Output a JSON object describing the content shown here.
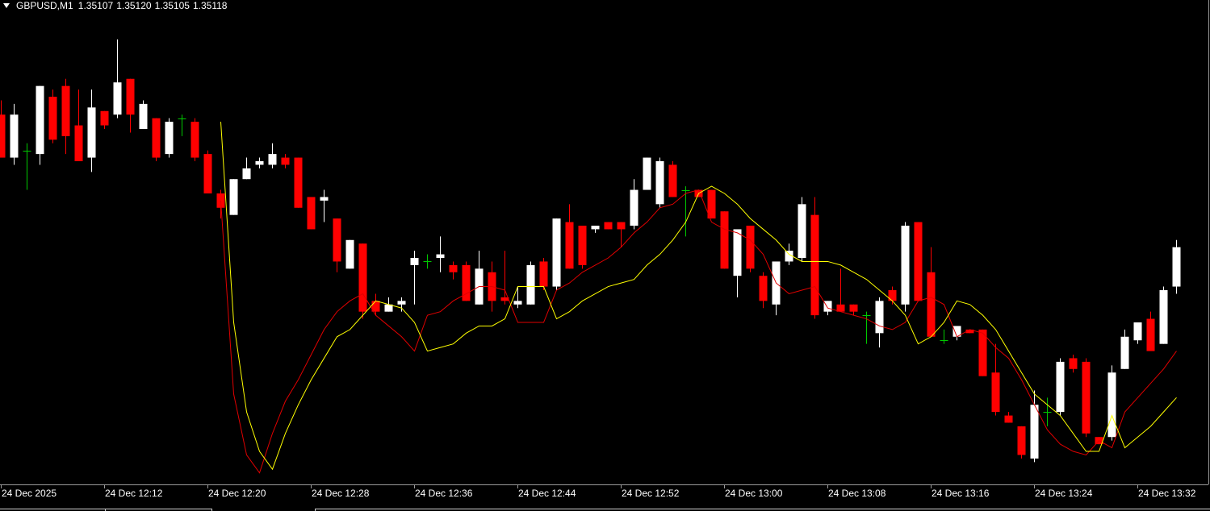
{
  "chart_data": {
    "type": "candlestick",
    "title": "GBPUSD,M1",
    "quote_labels": [
      "1.35107",
      "1.35120",
      "1.35105",
      "1.35118"
    ],
    "categories": [
      "24 Dec 2025",
      null,
      null,
      null,
      null,
      null,
      null,
      null,
      "24 Dec 12:12",
      null,
      null,
      null,
      null,
      null,
      null,
      null,
      "24 Dec 12:20",
      null,
      null,
      null,
      null,
      null,
      null,
      null,
      "24 Dec 12:28",
      null,
      null,
      null,
      null,
      null,
      null,
      null,
      "24 Dec 12:36",
      null,
      null,
      null,
      null,
      null,
      null,
      null,
      "24 Dec 12:44",
      null,
      null,
      null,
      null,
      null,
      null,
      null,
      "24 Dec 12:52",
      null,
      null,
      null,
      null,
      null,
      null,
      null,
      "24 Dec 13:00",
      null,
      null,
      null,
      null,
      null,
      null,
      null,
      "24 Dec 13:08",
      null,
      null,
      null,
      null,
      null,
      null,
      null,
      "24 Dec 13:16",
      null,
      null,
      null,
      null,
      null,
      null,
      null,
      "24 Dec 13:24",
      null,
      null,
      null,
      null,
      null,
      null,
      null,
      "24 Dec 13:32",
      null,
      null,
      null
    ],
    "open": [
      1.35155,
      1.35143,
      1.35145,
      1.35144,
      1.3516,
      1.35163,
      1.35152,
      1.35143,
      1.35156,
      1.35155,
      1.35165,
      1.35151,
      1.35154,
      1.35144,
      1.35154,
      1.35153,
      1.35144,
      1.35133,
      1.35127,
      1.35137,
      1.35141,
      1.35141,
      1.35143,
      1.35143,
      1.35132,
      1.35131,
      1.35126,
      1.35112,
      1.35119,
      1.35103,
      1.351,
      1.35102,
      1.35113,
      1.35114,
      1.35115,
      1.35113,
      1.35113,
      1.35102,
      1.35111,
      1.35104,
      1.35102,
      1.35102,
      1.35114,
      1.35107,
      1.35125,
      1.35124,
      1.35123,
      1.35125,
      1.35125,
      1.35124,
      1.35134,
      1.3513,
      1.35141,
      1.35134,
      1.35134,
      1.35134,
      1.35128,
      1.3511,
      1.35124,
      1.3511,
      1.35102,
      1.35114,
      1.35115,
      1.35127,
      1.351,
      1.35102,
      1.35102,
      1.35099,
      1.35094,
      1.35106,
      1.35102,
      1.35125,
      1.35111,
      1.35092,
      1.35093,
      1.35095,
      1.35095,
      1.35083,
      1.35071,
      1.35068,
      1.35059,
      1.35072,
      1.35072,
      1.35087,
      1.35086,
      1.35065,
      1.35065,
      1.35084,
      1.35092,
      1.35098,
      1.35091,
      1.35107
    ],
    "high": [
      1.35159,
      1.35158,
      1.35147,
      1.35163,
      1.35162,
      1.35165,
      1.35162,
      1.35162,
      1.35156,
      1.35176,
      1.35165,
      1.35159,
      1.35154,
      1.35154,
      1.35155,
      1.35154,
      1.35145,
      1.35134,
      1.35137,
      1.35143,
      1.35143,
      1.35147,
      1.35144,
      1.35143,
      1.35132,
      1.35134,
      1.35126,
      1.3512,
      1.35119,
      1.35105,
      1.35104,
      1.35104,
      1.35117,
      1.35116,
      1.35121,
      1.35114,
      1.35114,
      1.35117,
      1.35114,
      1.35117,
      1.35107,
      1.35114,
      1.35115,
      1.35126,
      1.3513,
      1.35124,
      1.35124,
      1.35125,
      1.35125,
      1.35137,
      1.35143,
      1.35143,
      1.35142,
      1.35135,
      1.35134,
      1.35134,
      1.35128,
      1.35123,
      1.35124,
      1.35111,
      1.35114,
      1.35119,
      1.35132,
      1.35132,
      1.35103,
      1.35112,
      1.35102,
      1.351,
      1.35104,
      1.35107,
      1.35125,
      1.35125,
      1.35118,
      1.35095,
      1.35096,
      1.35095,
      1.35095,
      1.35091,
      1.35072,
      1.35068,
      1.35078,
      1.35076,
      1.35087,
      1.35088,
      1.35087,
      1.35065,
      1.35085,
      1.35095,
      1.35097,
      1.351,
      1.35107,
      1.3512
    ],
    "low": [
      1.35143,
      1.35141,
      1.35134,
      1.35141,
      1.35147,
      1.35144,
      1.35142,
      1.35139,
      1.35151,
      1.35154,
      1.3515,
      1.35151,
      1.35142,
      1.35143,
      1.35149,
      1.35142,
      1.35133,
      1.35126,
      1.35127,
      1.35137,
      1.3514,
      1.3514,
      1.3514,
      1.35129,
      1.35123,
      1.35125,
      1.35111,
      1.35112,
      1.35098,
      1.35099,
      1.351,
      1.351,
      1.35102,
      1.35112,
      1.35111,
      1.35109,
      1.35103,
      1.35102,
      1.351,
      1.35102,
      1.35101,
      1.35102,
      1.35106,
      1.35106,
      1.35112,
      1.35112,
      1.35122,
      1.35123,
      1.35118,
      1.35123,
      1.35134,
      1.35129,
      1.35132,
      1.35121,
      1.35132,
      1.35126,
      1.35112,
      1.35104,
      1.35111,
      1.35101,
      1.35099,
      1.35113,
      1.35114,
      1.35098,
      1.35099,
      1.351,
      1.35099,
      1.35091,
      1.3509,
      1.35102,
      1.351,
      1.35103,
      1.35093,
      1.35091,
      1.35092,
      1.35094,
      1.35082,
      1.35071,
      1.35069,
      1.35059,
      1.35058,
      1.35068,
      1.35071,
      1.35083,
      1.35065,
      1.35063,
      1.35064,
      1.35084,
      1.35091,
      1.35089,
      1.35091,
      1.35105
    ],
    "close": [
      1.35143,
      1.35155,
      1.35145,
      1.35163,
      1.35148,
      1.35149,
      1.35142,
      1.35157,
      1.35152,
      1.35164,
      1.35155,
      1.35158,
      1.35143,
      1.35153,
      1.35154,
      1.35143,
      1.35133,
      1.35129,
      1.35137,
      1.3514,
      1.35142,
      1.35144,
      1.35141,
      1.35129,
      1.35123,
      1.35132,
      1.35114,
      1.3512,
      1.351,
      1.351,
      1.35102,
      1.35103,
      1.35115,
      1.35114,
      1.35116,
      1.35111,
      1.35103,
      1.35112,
      1.35103,
      1.35103,
      1.35103,
      1.35113,
      1.35107,
      1.35126,
      1.35112,
      1.35113,
      1.35124,
      1.35123,
      1.35123,
      1.35134,
      1.35143,
      1.35142,
      1.35132,
      1.35134,
      1.35132,
      1.35126,
      1.35112,
      1.35123,
      1.35112,
      1.35103,
      1.35114,
      1.35117,
      1.3513,
      1.35099,
      1.35103,
      1.351,
      1.351,
      1.35099,
      1.35103,
      1.35103,
      1.35124,
      1.35103,
      1.35093,
      1.35092,
      1.35096,
      1.35094,
      1.35082,
      1.35072,
      1.35069,
      1.3506,
      1.35074,
      1.35072,
      1.35086,
      1.35084,
      1.35066,
      1.35063,
      1.35083,
      1.35093,
      1.35097,
      1.35089,
      1.35106,
      1.35118
    ],
    "up_color": "#ffffff",
    "down_color": "#ff0000",
    "doji_color": "#00c800",
    "series": [
      {
        "color": "#e00000",
        "values": [
          null,
          null,
          null,
          null,
          null,
          null,
          null,
          null,
          null,
          null,
          null,
          null,
          null,
          null,
          null,
          null,
          null,
          1.35131,
          1.35077,
          1.3506,
          1.35055,
          1.35066,
          1.35075,
          1.35081,
          1.35088,
          1.35095,
          1.351,
          1.35103,
          1.35105,
          1.35099,
          1.35096,
          1.35093,
          1.35089,
          1.35099,
          1.351,
          1.35103,
          1.35105,
          1.35107,
          1.35107,
          1.35106,
          1.35097,
          1.35097,
          1.35097,
          1.35106,
          1.35108,
          1.35111,
          1.35113,
          1.35115,
          1.35118,
          1.35122,
          1.35125,
          1.35129,
          1.3513,
          1.35133,
          1.35134,
          1.35125,
          1.35123,
          1.35122,
          1.3512,
          1.35116,
          1.35108,
          1.35105,
          1.35106,
          1.35107,
          1.35101,
          1.351,
          1.35099,
          1.35098,
          1.35096,
          1.35095,
          1.35097,
          1.35103,
          1.35104,
          1.35102,
          1.35093,
          1.35095,
          1.35094,
          1.3509,
          1.35087,
          1.35081,
          1.35074,
          1.35067,
          1.35063,
          1.35061,
          1.3506,
          1.35064,
          1.35062,
          1.35072,
          1.35076,
          1.3508,
          1.35084,
          1.35089
        ]
      },
      {
        "color": "#ffff00",
        "values": [
          null,
          null,
          null,
          null,
          null,
          null,
          null,
          null,
          null,
          null,
          null,
          null,
          null,
          null,
          null,
          null,
          null,
          1.35153,
          1.35097,
          1.35072,
          1.35061,
          1.35056,
          1.35066,
          1.35074,
          1.35081,
          1.35087,
          1.35093,
          1.35095,
          1.35099,
          1.35103,
          1.35102,
          1.35101,
          1.35097,
          1.35089,
          1.3509,
          1.35091,
          1.35094,
          1.35096,
          1.35096,
          1.35098,
          1.35107,
          1.35107,
          1.35107,
          1.35098,
          1.351,
          1.35103,
          1.35105,
          1.35107,
          1.35108,
          1.35109,
          1.35113,
          1.35116,
          1.3512,
          1.35125,
          1.35133,
          1.35135,
          1.35133,
          1.3513,
          1.35126,
          1.35123,
          1.3512,
          1.35116,
          1.35114,
          1.35114,
          1.35114,
          1.35113,
          1.35111,
          1.35109,
          1.35106,
          1.35103,
          1.35099,
          1.35091,
          1.35093,
          1.35097,
          1.35103,
          1.35102,
          1.35099,
          1.35095,
          1.35089,
          1.35083,
          1.35077,
          1.35074,
          1.35071,
          1.35066,
          1.35061,
          1.35061,
          1.35071,
          1.35062,
          1.35065,
          1.35068,
          1.35072,
          1.35076
        ]
      }
    ],
    "ylim": [
      1.35052,
      1.35187
    ]
  }
}
